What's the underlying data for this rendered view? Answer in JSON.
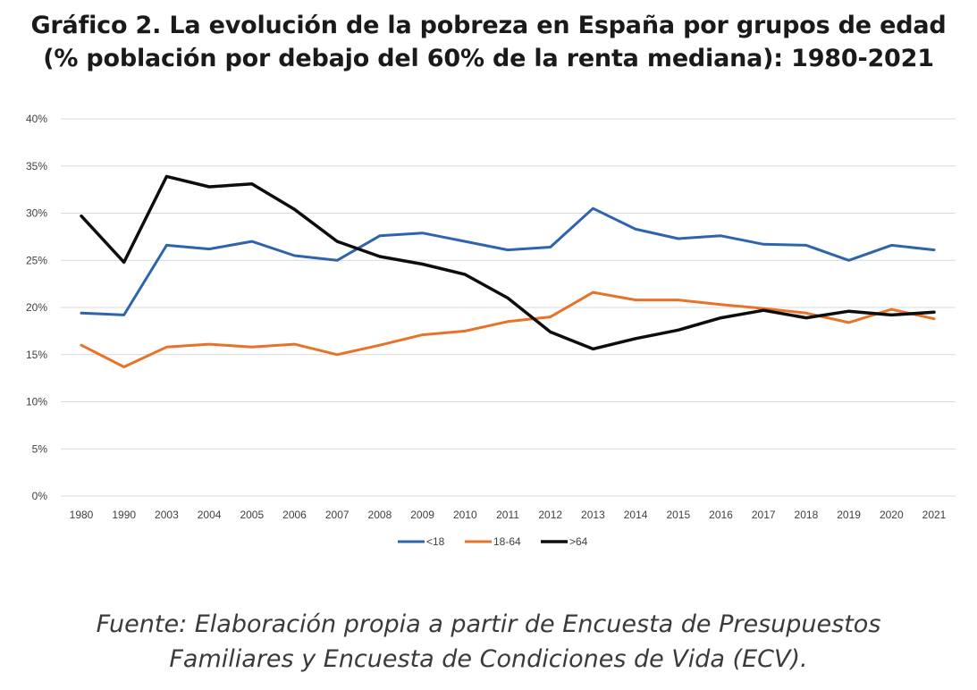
{
  "title": {
    "line1": "Gráfico 2. La evolución de la pobreza en España por grupos de edad",
    "line2": "(% población por debajo del 60% de la renta mediana): 1980-2021"
  },
  "caption": {
    "line1": "Fuente: Elaboración propia a partir de Encuesta de Presupuestos",
    "line2": "Familiares y Encuesta de Condiciones de Vida (ECV)."
  },
  "chart_data": {
    "type": "line",
    "title": "",
    "xlabel": "",
    "ylabel": "",
    "ylim": [
      0,
      40
    ],
    "y_ticks": [
      "0%",
      "5%",
      "10%",
      "15%",
      "20%",
      "25%",
      "30%",
      "35%",
      "40%"
    ],
    "grid": true,
    "legend_position": "bottom",
    "categories": [
      "1980",
      "1990",
      "2003",
      "2004",
      "2005",
      "2006",
      "2007",
      "2008",
      "2009",
      "2010",
      "2011",
      "2012",
      "2013",
      "2014",
      "2015",
      "2016",
      "2017",
      "2018",
      "2019",
      "2020",
      "2021"
    ],
    "series": [
      {
        "name": "<18",
        "color": "#2e64ad",
        "values": [
          19.4,
          19.2,
          26.6,
          26.2,
          27.0,
          25.5,
          25.0,
          27.6,
          27.9,
          27.0,
          26.1,
          26.4,
          30.5,
          28.3,
          27.3,
          27.6,
          26.7,
          26.6,
          25.0,
          26.6,
          26.1
        ]
      },
      {
        "name": "18-64",
        "color": "#e7732a",
        "values": [
          16.0,
          13.7,
          15.8,
          16.1,
          15.8,
          16.1,
          15.0,
          16.0,
          17.1,
          17.5,
          18.5,
          19.0,
          21.6,
          20.8,
          20.8,
          20.3,
          19.9,
          19.4,
          18.4,
          19.8,
          18.8
        ]
      },
      {
        "name": ">64",
        "color": "#0d0d0d",
        "values": [
          29.7,
          24.8,
          33.9,
          32.8,
          33.1,
          30.4,
          27.0,
          25.4,
          24.6,
          23.5,
          21.0,
          17.4,
          15.6,
          16.7,
          17.6,
          18.9,
          19.7,
          18.9,
          19.6,
          19.2,
          19.5
        ]
      }
    ]
  }
}
